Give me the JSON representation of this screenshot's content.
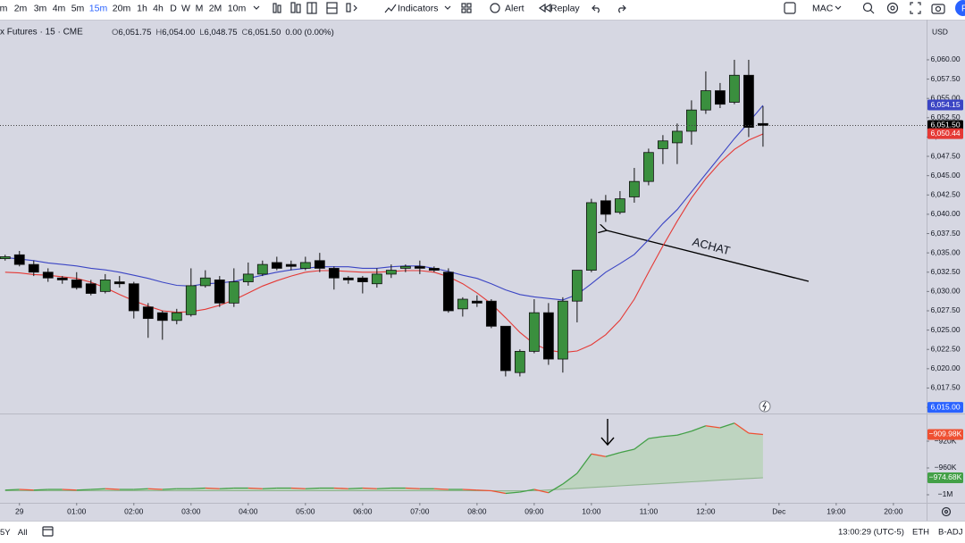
{
  "toolbar": {
    "intervals": [
      "m",
      "2m",
      "3m",
      "4m",
      "5m",
      "15m",
      "20m",
      "1h",
      "4h",
      "D",
      "W",
      "M",
      "2M",
      "10m"
    ],
    "active_interval": 5,
    "indicators": "Indicators",
    "alert": "Alert",
    "replay": "Replay",
    "layout_name": "MAC",
    "avatar": "P"
  },
  "legend": {
    "symbol": "x Futures · 15 · CME",
    "ohlc": [
      {
        "label": "O",
        "value": "6,051.75"
      },
      {
        "label": "H",
        "value": "6,054.00"
      },
      {
        "label": "L",
        "value": "6,048.75"
      },
      {
        "label": "C",
        "value": "6,051.50"
      }
    ],
    "change": "0.00 (0.00%)"
  },
  "chart_data": [
    {
      "type": "candlestick",
      "currency": "USD",
      "x": [
        -0.25,
        0,
        0.25,
        0.5,
        0.75,
        1,
        1.25,
        1.5,
        1.75,
        2,
        2.25,
        2.5,
        2.75,
        3,
        3.25,
        3.5,
        3.75,
        4,
        4.25,
        4.5,
        4.75,
        5,
        5.25,
        5.5,
        5.75,
        6,
        6.25,
        6.5,
        6.75,
        7,
        7.25,
        7.5,
        7.75,
        8,
        8.25,
        8.5,
        8.75,
        9,
        9.25,
        9.5,
        9.75,
        10,
        10.25,
        10.5,
        10.75,
        11,
        11.25,
        11.5,
        11.75,
        12,
        12.25,
        12.5,
        12.75,
        13
      ],
      "open": [
        6034.25,
        6034.75,
        6033.5,
        6032.5,
        6031.75,
        6031.5,
        6031,
        6030,
        6031.25,
        6031,
        6028,
        6027.25,
        6026.25,
        6027,
        6030.75,
        6031.5,
        6028.5,
        6031.25,
        6032.25,
        6033.75,
        6033.5,
        6033,
        6034,
        6033,
        6031.75,
        6031.75,
        6031,
        6032.25,
        6033,
        6033.25,
        6033,
        6032.5,
        6027.75,
        6028.75,
        6028.75,
        6025.5,
        6019.5,
        6022.25,
        6027.25,
        6021.25,
        6028.75,
        6032.75,
        6041.75,
        6040.25,
        6042.25,
        6044.25,
        6048.5,
        6049.25,
        6050.75,
        6053.5,
        6056,
        6054.5,
        6058,
        6051.75
      ],
      "high": [
        6034.75,
        6035.25,
        6034,
        6033,
        6032,
        6032.5,
        6031.5,
        6032.25,
        6032,
        6031.25,
        6028.5,
        6027.5,
        6027.75,
        6033,
        6032.75,
        6032,
        6033,
        6033.75,
        6034,
        6034.5,
        6034,
        6034.5,
        6035,
        6033.25,
        6032,
        6032,
        6033,
        6033.5,
        6033.5,
        6034,
        6033.25,
        6033,
        6029.25,
        6029.5,
        6029,
        6025.5,
        6022.5,
        6029,
        6028.5,
        6029.25,
        6032.75,
        6042,
        6042.5,
        6043,
        6046,
        6048.5,
        6050.25,
        6051.75,
        6054.75,
        6058.5,
        6057,
        6060,
        6060,
        6054
      ],
      "low": [
        6034,
        6033.25,
        6032,
        6031.25,
        6031,
        6030.25,
        6029.5,
        6029.75,
        6030.5,
        6026.5,
        6024,
        6023.75,
        6025.75,
        6026.75,
        6030.5,
        6028,
        6028,
        6030.75,
        6032,
        6032.75,
        6032.75,
        6032.75,
        6032.5,
        6030.25,
        6031,
        6029.75,
        6030.5,
        6031.75,
        6032.5,
        6032.25,
        6032.5,
        6027.25,
        6026.75,
        6028,
        6025.25,
        6019,
        6019,
        6022,
        6020.5,
        6019.5,
        6026,
        6032.5,
        6039,
        6040,
        6041.5,
        6043.75,
        6046.5,
        6046.5,
        6049,
        6053,
        6053.75,
        6054.25,
        6050,
        6048.75
      ],
      "close": [
        6034.5,
        6033.5,
        6032.5,
        6031.75,
        6031.5,
        6030.5,
        6029.75,
        6031.5,
        6031,
        6027.5,
        6026.5,
        6026.25,
        6027.25,
        6030.75,
        6031.75,
        6028.5,
        6031.25,
        6032.25,
        6033.5,
        6033,
        6033.25,
        6033.75,
        6033,
        6031.75,
        6031.5,
        6031.25,
        6032.25,
        6032.75,
        6033.25,
        6033,
        6032.75,
        6027.5,
        6029,
        6028.5,
        6025.5,
        6019.75,
        6022.25,
        6027.25,
        6021.25,
        6028.75,
        6032.75,
        6041.5,
        6040,
        6042,
        6044.25,
        6048,
        6049.5,
        6050.75,
        6053.5,
        6056,
        6054.25,
        6058,
        6051.25,
        6051.5
      ],
      "up_color": "#3a8f3e",
      "down_color": "#000000",
      "series": [
        {
          "type": "line",
          "color": "#3b45c4",
          "values": [
            6034.4,
            6034.2,
            6034.0,
            6033.7,
            6033.5,
            6033.3,
            6033.0,
            6032.8,
            6032.5,
            6032.1,
            6031.7,
            6031.2,
            6030.8,
            6030.7,
            6031.0,
            6031.1,
            6031.3,
            6031.7,
            6032.1,
            6032.5,
            6032.8,
            6033.0,
            6033.2,
            6033.2,
            6033.2,
            6033.0,
            6033.0,
            6033.2,
            6033.3,
            6033.3,
            6033.0,
            6032.6,
            6032.1,
            6031.7,
            6031.0,
            6030.2,
            6029.6,
            6029.3,
            6029.1,
            6028.9,
            6029.6,
            6031.0,
            6032.5,
            6033.6,
            6034.8,
            6036.7,
            6038.8,
            6040.6,
            6042.9,
            6045.2,
            6047.5,
            6049.8,
            6051.9,
            6054.1
          ]
        },
        {
          "type": "line",
          "color": "#e53935",
          "values": [
            6032.5,
            6032.4,
            6032.2,
            6032.1,
            6031.9,
            6031.7,
            6031.2,
            6030.5,
            6029.6,
            6028.8,
            6028.1,
            6027.5,
            6027.3,
            6027.4,
            6027.7,
            6028.2,
            6028.9,
            6029.8,
            6030.7,
            6031.4,
            6032.0,
            6032.5,
            6032.7,
            6032.7,
            6032.6,
            6032.5,
            6032.5,
            6032.6,
            6032.7,
            6032.7,
            6032.5,
            6031.9,
            6031.0,
            6029.8,
            6028.4,
            6026.6,
            6024.7,
            6023.2,
            6022.4,
            6022.1,
            6022.3,
            6023.1,
            6024.4,
            6026.3,
            6029.0,
            6032.5,
            6035.9,
            6039.1,
            6042.1,
            6044.6,
            6046.7,
            6048.4,
            6049.6,
            6050.4
          ]
        }
      ],
      "xlim": [
        -0.34,
        15.86
      ],
      "xticks": [
        {
          "value": 0,
          "label": "29"
        },
        {
          "value": 1,
          "label": "01:00"
        },
        {
          "value": 2,
          "label": "02:00"
        },
        {
          "value": 3,
          "label": "03:00"
        },
        {
          "value": 4,
          "label": "04:00"
        },
        {
          "value": 5,
          "label": "05:00"
        },
        {
          "value": 6,
          "label": "06:00"
        },
        {
          "value": 7,
          "label": "07:00"
        },
        {
          "value": 8,
          "label": "08:00"
        },
        {
          "value": 9,
          "label": "09:00"
        },
        {
          "value": 10,
          "label": "10:00"
        },
        {
          "value": 11,
          "label": "11:00"
        },
        {
          "value": 12,
          "label": "12:00"
        },
        {
          "value": 13.28,
          "label": "Dec"
        },
        {
          "value": 14.28,
          "label": "19:00"
        },
        {
          "value": 15.28,
          "label": "20:00"
        }
      ],
      "ylim": [
        6014.2,
        6065.2
      ],
      "yticks": [
        {
          "value": 6060,
          "label": "6,060.00"
        },
        {
          "value": 6057.5,
          "label": "6,057.50"
        },
        {
          "value": 6055,
          "label": "6,055.00"
        },
        {
          "value": 6052.5,
          "label": "6,052.50"
        },
        {
          "value": 6050,
          "label": "6,050.00"
        },
        {
          "value": 6047.5,
          "label": "6,047.50"
        },
        {
          "value": 6045,
          "label": "6,045.00"
        },
        {
          "value": 6042.5,
          "label": "6,042.50"
        },
        {
          "value": 6040,
          "label": "6,040.00"
        },
        {
          "value": 6037.5,
          "label": "6,037.50"
        },
        {
          "value": 6035,
          "label": "6,035.00"
        },
        {
          "value": 6032.5,
          "label": "6,032.50"
        },
        {
          "value": 6030,
          "label": "6,030.00"
        },
        {
          "value": 6027.5,
          "label": "6,027.50"
        },
        {
          "value": 6025,
          "label": "6,025.00"
        },
        {
          "value": 6022.5,
          "label": "6,022.50"
        },
        {
          "value": 6020,
          "label": "6,020.00"
        },
        {
          "value": 6017.5,
          "label": "6,017.50"
        },
        {
          "value": 6015,
          "label": "6,015.00"
        }
      ],
      "grid": false,
      "badges": [
        {
          "value": 6054.15,
          "label": "6,054.15",
          "color": "#3b45c4"
        },
        {
          "value": 6051.5,
          "label": "6,051.50",
          "color": "#000000",
          "price_line": true
        },
        {
          "value": 6050.44,
          "label": "6,050.44",
          "color": "#e53935"
        },
        {
          "value": 6015,
          "label": "6,015.00",
          "color": "#2962ff"
        }
      ],
      "annotations": [
        "ACHAT"
      ]
    },
    {
      "type": "line",
      "x": [
        -0.25,
        0,
        0.25,
        0.5,
        0.75,
        1,
        1.25,
        1.5,
        1.75,
        2,
        2.25,
        2.5,
        2.75,
        3,
        3.25,
        3.5,
        3.75,
        4,
        4.25,
        4.5,
        4.75,
        5,
        5.25,
        5.5,
        5.75,
        6,
        6.25,
        6.5,
        6.75,
        7,
        7.25,
        7.5,
        7.75,
        8,
        8.25,
        8.5,
        8.75,
        9,
        9.25,
        9.5,
        9.75,
        10,
        10.25,
        10.5,
        10.75,
        11,
        11.25,
        11.5,
        11.75,
        12,
        12.25,
        12.5,
        12.75,
        13
      ],
      "series": [
        {
          "color": "#43a047",
          "down_color": "#ef5032",
          "values": [
            -993000,
            -992000,
            -993000,
            -992000,
            -992000,
            -993000,
            -992000,
            -991000,
            -992000,
            -992000,
            -991000,
            -992000,
            -991000,
            -991000,
            -990000,
            -991000,
            -990000,
            -990000,
            -991000,
            -990000,
            -990000,
            -991000,
            -990000,
            -990000,
            -991000,
            -990000,
            -991000,
            -990000,
            -990000,
            -991000,
            -991000,
            -992000,
            -992000,
            -993000,
            -994000,
            -998000,
            -996000,
            -992000,
            -997000,
            -984000,
            -968000,
            -939000,
            -943000,
            -937000,
            -932000,
            -916000,
            -913000,
            -911000,
            -905000,
            -897000,
            -900000,
            -893000,
            -908000,
            -909980
          ]
        },
        {
          "color": "#8fb58f",
          "values": [
            -994000,
            -994000,
            -994000,
            -994000,
            -994000,
            -994000,
            -994000,
            -994000,
            -994000,
            -994000,
            -994000,
            -994000,
            -994000,
            -994000,
            -994000,
            -994000,
            -994000,
            -994000,
            -994000,
            -994000,
            -994000,
            -994000,
            -994000,
            -994000,
            -994000,
            -994000,
            -994000,
            -994000,
            -994000,
            -994000,
            -994000,
            -994000,
            -994000,
            -994000,
            -994000,
            -994000,
            -994000,
            -994000,
            -992800,
            -991600,
            -990400,
            -989100,
            -987900,
            -986700,
            -985500,
            -984300,
            -983100,
            -981900,
            -980700,
            -979500,
            -978200,
            -977000,
            -975800,
            -974680
          ]
        }
      ],
      "fill_color": "#b6d3b4",
      "xlim": [
        -0.34,
        15.86
      ],
      "ylim": [
        -1010700,
        -881300
      ],
      "yticks": [
        {
          "value": -920000,
          "label": "−920K"
        },
        {
          "value": -960000,
          "label": "−960K"
        },
        {
          "value": -1000000,
          "label": "−1M"
        }
      ],
      "badges": [
        {
          "value": -909980,
          "label": "−909.98K",
          "color": "#ef5032"
        },
        {
          "value": -974680,
          "label": "−974.68K",
          "color": "#43a047"
        }
      ]
    }
  ],
  "bottom_bar": {
    "ranges": [
      "5Y",
      "All"
    ],
    "clock": "13:00:29 (UTC-5)",
    "session": "ETH",
    "adjustment": "B-ADJ"
  }
}
